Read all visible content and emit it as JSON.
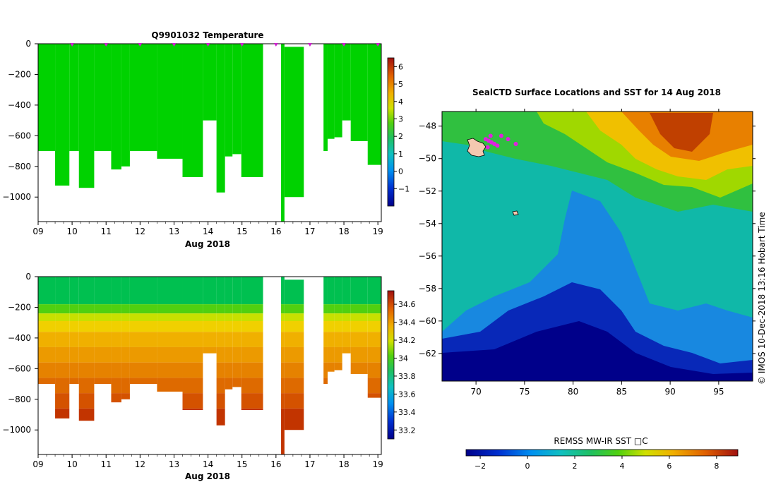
{
  "chart_data": [
    {
      "type": "heatmap",
      "title": "Q9901032  Temperature",
      "xlabel": "Aug 2018",
      "ylabel": "",
      "x_ticks": [
        "09",
        "10",
        "11",
        "12",
        "13",
        "14",
        "15",
        "16",
        "17",
        "18",
        "19"
      ],
      "xlim": [
        9,
        19.1
      ],
      "y_ticks": [
        0,
        -200,
        -400,
        -600,
        -800,
        -1000
      ],
      "ylim": [
        -1160,
        0
      ],
      "colorbar": {
        "min": -2,
        "max": 6.5,
        "ticks": [
          -1,
          0,
          1,
          2,
          3,
          4,
          5,
          6
        ]
      },
      "profile_markers_x": [
        10,
        11,
        12,
        13,
        14,
        15,
        16,
        17,
        18,
        19
      ],
      "profiles": [
        {
          "x0": 9.0,
          "x1": 9.5,
          "depth": 700
        },
        {
          "x0": 9.5,
          "x1": 9.92,
          "depth": 925
        },
        {
          "x0": 9.92,
          "x1": 10.2,
          "depth": 700
        },
        {
          "x0": 10.2,
          "x1": 10.65,
          "depth": 940
        },
        {
          "x0": 10.65,
          "x1": 11.15,
          "depth": 700
        },
        {
          "x0": 11.15,
          "x1": 11.45,
          "depth": 820
        },
        {
          "x0": 11.45,
          "x1": 11.7,
          "depth": 800
        },
        {
          "x0": 11.7,
          "x1": 12.5,
          "depth": 700
        },
        {
          "x0": 12.5,
          "x1": 13.25,
          "depth": 750
        },
        {
          "x0": 13.25,
          "x1": 13.85,
          "depth": 870
        },
        {
          "x0": 13.85,
          "x1": 14.25,
          "depth": 500
        },
        {
          "x0": 14.25,
          "x1": 14.5,
          "depth": 970
        },
        {
          "x0": 14.5,
          "x1": 14.72,
          "depth": 735
        },
        {
          "x0": 14.72,
          "x1": 14.98,
          "depth": 720
        },
        {
          "x0": 14.98,
          "x1": 15.62,
          "depth": 870
        },
        {
          "x0": 16.15,
          "x1": 16.25,
          "depth": 1160,
          "top": 0
        },
        {
          "x0": 16.25,
          "x1": 16.82,
          "depth": 1000,
          "top": 20
        },
        {
          "x0": 17.4,
          "x1": 17.52,
          "depth": 700
        },
        {
          "x0": 17.52,
          "x1": 17.72,
          "depth": 620
        },
        {
          "x0": 17.72,
          "x1": 17.95,
          "depth": 610
        },
        {
          "x0": 17.95,
          "x1": 18.2,
          "depth": 500
        },
        {
          "x0": 18.2,
          "x1": 18.7,
          "depth": 635
        },
        {
          "x0": 18.7,
          "x1": 19.1,
          "depth": 790
        }
      ],
      "layers": [
        {
          "from": 0,
          "to": 1200,
          "color": "#00d200"
        }
      ]
    },
    {
      "type": "heatmap",
      "title": "",
      "xlabel": "Aug 2018",
      "ylabel": "",
      "x_ticks": [
        "09",
        "10",
        "11",
        "12",
        "13",
        "14",
        "15",
        "16",
        "17",
        "18",
        "19"
      ],
      "xlim": [
        9,
        19.1
      ],
      "y_ticks": [
        0,
        -200,
        -400,
        -600,
        -800,
        -1000
      ],
      "ylim": [
        -1160,
        0
      ],
      "colorbar": {
        "min": 33.1,
        "max": 34.75,
        "ticks": [
          "33.2",
          "33.4",
          "33.6",
          "33.8",
          "34",
          "34.2",
          "34.4",
          "34.6"
        ]
      },
      "profiles": [
        {
          "x0": 9.0,
          "x1": 9.5,
          "depth": 700
        },
        {
          "x0": 9.5,
          "x1": 9.92,
          "depth": 925
        },
        {
          "x0": 9.92,
          "x1": 10.2,
          "depth": 700
        },
        {
          "x0": 10.2,
          "x1": 10.65,
          "depth": 940
        },
        {
          "x0": 10.65,
          "x1": 11.15,
          "depth": 700
        },
        {
          "x0": 11.15,
          "x1": 11.45,
          "depth": 820
        },
        {
          "x0": 11.45,
          "x1": 11.7,
          "depth": 800
        },
        {
          "x0": 11.7,
          "x1": 12.5,
          "depth": 700
        },
        {
          "x0": 12.5,
          "x1": 13.25,
          "depth": 750
        },
        {
          "x0": 13.25,
          "x1": 13.85,
          "depth": 870
        },
        {
          "x0": 13.85,
          "x1": 14.25,
          "depth": 500
        },
        {
          "x0": 14.25,
          "x1": 14.5,
          "depth": 970
        },
        {
          "x0": 14.5,
          "x1": 14.72,
          "depth": 735
        },
        {
          "x0": 14.72,
          "x1": 14.98,
          "depth": 720
        },
        {
          "x0": 14.98,
          "x1": 15.62,
          "depth": 870
        },
        {
          "x0": 16.15,
          "x1": 16.25,
          "depth": 1160,
          "top": 0
        },
        {
          "x0": 16.25,
          "x1": 16.82,
          "depth": 1000,
          "top": 20
        },
        {
          "x0": 17.4,
          "x1": 17.52,
          "depth": 700
        },
        {
          "x0": 17.52,
          "x1": 17.72,
          "depth": 620
        },
        {
          "x0": 17.72,
          "x1": 17.95,
          "depth": 610
        },
        {
          "x0": 17.95,
          "x1": 18.2,
          "depth": 500
        },
        {
          "x0": 18.2,
          "x1": 18.7,
          "depth": 635
        },
        {
          "x0": 18.7,
          "x1": 19.1,
          "depth": 790
        }
      ],
      "layers": [
        {
          "from": 0,
          "to": 180,
          "color": "#00c050"
        },
        {
          "from": 180,
          "to": 240,
          "color": "#50d010"
        },
        {
          "from": 240,
          "to": 290,
          "color": "#c8e000"
        },
        {
          "from": 290,
          "to": 360,
          "color": "#f0d000"
        },
        {
          "from": 360,
          "to": 460,
          "color": "#f0b000"
        },
        {
          "from": 460,
          "to": 560,
          "color": "#ec9a00"
        },
        {
          "from": 560,
          "to": 660,
          "color": "#e68200"
        },
        {
          "from": 660,
          "to": 760,
          "color": "#de6a00"
        },
        {
          "from": 760,
          "to": 860,
          "color": "#d45200"
        },
        {
          "from": 860,
          "to": 1200,
          "color": "#c23400"
        }
      ]
    },
    {
      "type": "heatmap",
      "title": "SealCTD Surface Locations and SST for 14 Aug 2018",
      "xlabel": "",
      "ylabel": "",
      "x_ticks": [
        70,
        75,
        80,
        85,
        90,
        95
      ],
      "xlim": [
        66.5,
        98.5
      ],
      "y_ticks": [
        -48,
        -50,
        -52,
        -54,
        -56,
        -58,
        -60,
        -62
      ],
      "ylim": [
        -63.7,
        -47.1
      ],
      "colorbar_label": "REMSS MW-IR SST □C",
      "colorbar": {
        "min": -2.6,
        "max": 8.9,
        "ticks": [
          -2,
          0,
          2,
          4,
          6,
          8
        ]
      },
      "seal_positions": [
        {
          "lon": 71.0,
          "lat": -48.8
        },
        {
          "lon": 71.3,
          "lat": -48.9
        },
        {
          "lon": 71.6,
          "lat": -49.0
        },
        {
          "lon": 71.9,
          "lat": -49.1
        },
        {
          "lon": 72.2,
          "lat": -49.2
        },
        {
          "lon": 72.6,
          "lat": -48.6
        },
        {
          "lon": 73.3,
          "lat": -48.8
        },
        {
          "lon": 74.1,
          "lat": -49.1
        },
        {
          "lon": 71.2,
          "lat": -49.3
        },
        {
          "lon": 71.5,
          "lat": -48.6
        }
      ],
      "credit": "©  IMOS 10-Dec-2018 13:16 Hobart Time"
    }
  ]
}
